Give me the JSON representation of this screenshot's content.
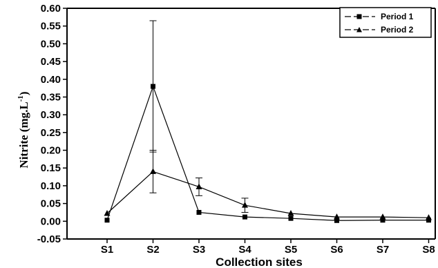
{
  "chart_data": {
    "type": "line",
    "categories": [
      "S1",
      "S2",
      "S3",
      "S4",
      "S5",
      "S6",
      "S7",
      "S8"
    ],
    "xlabel": "Collection sites",
    "ylabel": "Nitrite (mg.L",
    "ylabel_superscript": "-1",
    "ylabel_close": ")",
    "ylim": [
      -0.05,
      0.6
    ],
    "yticks": [
      "-0.05",
      "0.00",
      "0.05",
      "0.10",
      "0.15",
      "0.20",
      "0.25",
      "0.30",
      "0.35",
      "0.40",
      "0.45",
      "0.50",
      "0.55",
      "0.60"
    ],
    "grid": false,
    "legend_position": "top-right",
    "series": [
      {
        "name": "Period 1",
        "marker": "square",
        "values": [
          0.003,
          0.38,
          0.025,
          0.012,
          0.008,
          0.002,
          0.003,
          0.003
        ],
        "error": [
          0,
          0.185,
          0,
          0,
          0,
          0,
          0,
          0
        ]
      },
      {
        "name": "Period 2",
        "marker": "triangle",
        "values": [
          0.022,
          0.14,
          0.097,
          0.045,
          0.022,
          0.012,
          0.012,
          0.01
        ],
        "error": [
          0,
          0.06,
          0.025,
          0.02,
          0,
          0,
          0,
          0
        ]
      }
    ]
  }
}
